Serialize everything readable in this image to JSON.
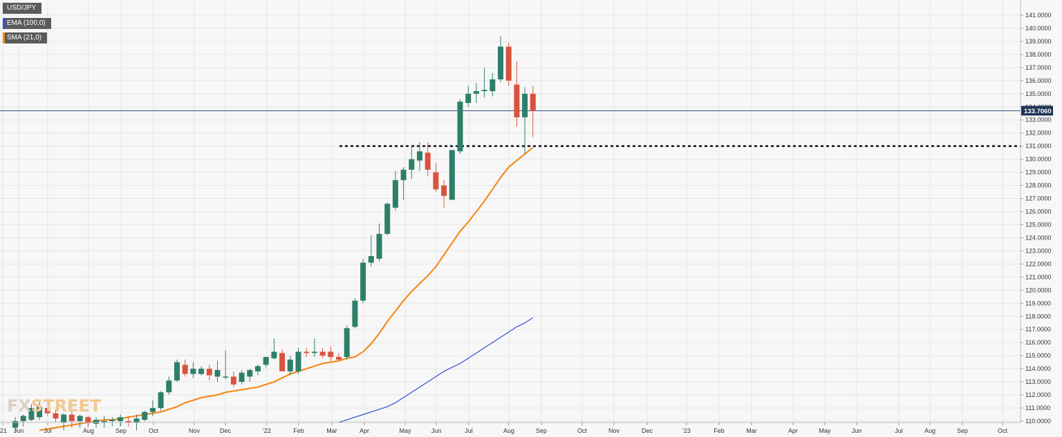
{
  "legend": {
    "symbol": "USD/JPY",
    "ema_label": "EMA (100,0)",
    "sma_label": "SMA (21,0)"
  },
  "watermark": {
    "part1": "FX",
    "part2": "STREET"
  },
  "colors": {
    "up": "#2e7f6a",
    "down": "#d9533f",
    "ema": "#2f4fd6",
    "sma": "#f28c1c",
    "price_line": "#2c4a7a",
    "price_label_bg": "#1e3556"
  },
  "chart_data": {
    "type": "candlestick",
    "title": "USD/JPY",
    "ylim": [
      110,
      141.5
    ],
    "yticks": [
      "110.0000",
      "111.0000",
      "112.0000",
      "113.0000",
      "114.0000",
      "115.0000",
      "116.0000",
      "117.0000",
      "118.0000",
      "119.0000",
      "120.0000",
      "121.0000",
      "122.0000",
      "123.0000",
      "124.0000",
      "125.0000",
      "126.0000",
      "127.0000",
      "128.0000",
      "129.0000",
      "130.0000",
      "131.0000",
      "132.0000",
      "133.0000",
      "134.0000",
      "135.0000",
      "136.0000",
      "137.0000",
      "138.0000",
      "139.0000",
      "140.0000",
      "141.0000"
    ],
    "xticks": [
      "'21",
      "Jun",
      "Jul",
      "Aug",
      "Sep",
      "Oct",
      "Nov",
      "Dec",
      "'22",
      "Feb",
      "Mar",
      "Apr",
      "May",
      "Jun",
      "Jul",
      "Aug",
      "Sep",
      "Oct",
      "Nov",
      "Dec",
      "'23",
      "Feb",
      "Mar",
      "Apr",
      "May",
      "Jun",
      "Jul",
      "Aug",
      "Sep",
      "Oct"
    ],
    "current_price": 133.706,
    "current_price_label": "133.7060",
    "support_level": 131.0,
    "candles": [
      {
        "o": 109.5,
        "h": 110.3,
        "l": 109.2,
        "c": 110.0
      },
      {
        "o": 110.0,
        "h": 110.5,
        "l": 109.6,
        "c": 110.4
      },
      {
        "o": 110.1,
        "h": 111.3,
        "l": 110.0,
        "c": 111.0
      },
      {
        "o": 110.3,
        "h": 111.5,
        "l": 110.1,
        "c": 111.1
      },
      {
        "o": 111.0,
        "h": 111.6,
        "l": 110.4,
        "c": 110.6
      },
      {
        "o": 110.6,
        "h": 110.9,
        "l": 109.9,
        "c": 110.2
      },
      {
        "o": 109.9,
        "h": 110.6,
        "l": 109.3,
        "c": 110.5
      },
      {
        "o": 110.5,
        "h": 110.9,
        "l": 109.5,
        "c": 110.0
      },
      {
        "o": 110.0,
        "h": 110.5,
        "l": 109.5,
        "c": 110.4
      },
      {
        "o": 110.3,
        "h": 110.4,
        "l": 109.5,
        "c": 109.9
      },
      {
        "o": 109.8,
        "h": 110.3,
        "l": 109.5,
        "c": 110.1
      },
      {
        "o": 109.9,
        "h": 110.4,
        "l": 109.5,
        "c": 110.0
      },
      {
        "o": 110.0,
        "h": 110.3,
        "l": 109.6,
        "c": 110.1
      },
      {
        "o": 110.0,
        "h": 110.5,
        "l": 109.6,
        "c": 110.3
      },
      {
        "o": 110.0,
        "h": 110.4,
        "l": 109.6,
        "c": 109.9
      },
      {
        "o": 109.9,
        "h": 110.5,
        "l": 109.3,
        "c": 110.2
      },
      {
        "o": 110.1,
        "h": 110.8,
        "l": 110.0,
        "c": 110.7
      },
      {
        "o": 110.7,
        "h": 111.6,
        "l": 110.4,
        "c": 111.0
      },
      {
        "o": 111.0,
        "h": 112.3,
        "l": 110.8,
        "c": 112.2
      },
      {
        "o": 112.2,
        "h": 113.4,
        "l": 112.0,
        "c": 113.1
      },
      {
        "o": 113.1,
        "h": 114.7,
        "l": 113.0,
        "c": 114.5
      },
      {
        "o": 114.3,
        "h": 114.7,
        "l": 113.4,
        "c": 113.6
      },
      {
        "o": 113.6,
        "h": 114.5,
        "l": 113.3,
        "c": 114.0
      },
      {
        "o": 113.6,
        "h": 114.2,
        "l": 113.5,
        "c": 114.0
      },
      {
        "o": 114.0,
        "h": 114.3,
        "l": 113.1,
        "c": 113.5
      },
      {
        "o": 113.4,
        "h": 114.6,
        "l": 113.0,
        "c": 113.9
      },
      {
        "o": 113.4,
        "h": 115.4,
        "l": 113.2,
        "c": 113.4
      },
      {
        "o": 113.4,
        "h": 113.8,
        "l": 112.6,
        "c": 112.8
      },
      {
        "o": 113.0,
        "h": 113.9,
        "l": 112.8,
        "c": 113.7
      },
      {
        "o": 113.4,
        "h": 114.0,
        "l": 113.0,
        "c": 113.9
      },
      {
        "o": 113.8,
        "h": 114.3,
        "l": 113.5,
        "c": 114.2
      },
      {
        "o": 114.3,
        "h": 114.9,
        "l": 114.1,
        "c": 114.9
      },
      {
        "o": 114.8,
        "h": 116.3,
        "l": 114.7,
        "c": 115.3
      },
      {
        "o": 115.2,
        "h": 115.5,
        "l": 113.8,
        "c": 113.8
      },
      {
        "o": 113.8,
        "h": 115.0,
        "l": 113.5,
        "c": 114.7
      },
      {
        "o": 113.8,
        "h": 115.6,
        "l": 113.6,
        "c": 115.3
      },
      {
        "o": 115.3,
        "h": 115.6,
        "l": 114.9,
        "c": 115.2
      },
      {
        "o": 115.2,
        "h": 116.3,
        "l": 114.9,
        "c": 115.3
      },
      {
        "o": 115.3,
        "h": 115.6,
        "l": 114.8,
        "c": 115.0
      },
      {
        "o": 115.3,
        "h": 115.7,
        "l": 114.6,
        "c": 114.9
      },
      {
        "o": 114.9,
        "h": 115.2,
        "l": 114.6,
        "c": 114.7
      },
      {
        "o": 114.9,
        "h": 117.3,
        "l": 114.7,
        "c": 117.1
      },
      {
        "o": 117.2,
        "h": 119.4,
        "l": 117.1,
        "c": 119.2
      },
      {
        "o": 119.2,
        "h": 122.4,
        "l": 119.0,
        "c": 122.1
      },
      {
        "o": 122.1,
        "h": 124.2,
        "l": 121.8,
        "c": 122.6
      },
      {
        "o": 122.4,
        "h": 125.1,
        "l": 122.2,
        "c": 124.3
      },
      {
        "o": 124.3,
        "h": 126.7,
        "l": 124.2,
        "c": 126.6
      },
      {
        "o": 126.3,
        "h": 129.1,
        "l": 126.1,
        "c": 128.4
      },
      {
        "o": 128.4,
        "h": 129.4,
        "l": 126.9,
        "c": 129.2
      },
      {
        "o": 129.2,
        "h": 131.0,
        "l": 128.5,
        "c": 130.0
      },
      {
        "o": 129.9,
        "h": 131.3,
        "l": 129.1,
        "c": 130.6
      },
      {
        "o": 130.5,
        "h": 131.3,
        "l": 128.7,
        "c": 129.2
      },
      {
        "o": 129.0,
        "h": 129.7,
        "l": 127.5,
        "c": 127.7
      },
      {
        "o": 128.0,
        "h": 128.4,
        "l": 126.3,
        "c": 127.2
      },
      {
        "o": 126.9,
        "h": 130.5,
        "l": 126.9,
        "c": 130.7
      },
      {
        "o": 130.6,
        "h": 134.6,
        "l": 130.4,
        "c": 134.4
      },
      {
        "o": 134.3,
        "h": 135.6,
        "l": 134.0,
        "c": 135.0
      },
      {
        "o": 135.0,
        "h": 135.8,
        "l": 134.3,
        "c": 135.2
      },
      {
        "o": 135.2,
        "h": 137.0,
        "l": 134.7,
        "c": 135.3
      },
      {
        "o": 135.2,
        "h": 136.6,
        "l": 134.8,
        "c": 136.1
      },
      {
        "o": 136.1,
        "h": 139.4,
        "l": 135.9,
        "c": 138.6
      },
      {
        "o": 138.6,
        "h": 138.9,
        "l": 135.6,
        "c": 136.0
      },
      {
        "o": 135.7,
        "h": 137.5,
        "l": 132.5,
        "c": 133.2
      },
      {
        "o": 133.2,
        "h": 135.5,
        "l": 130.4,
        "c": 135.0
      },
      {
        "o": 135.0,
        "h": 135.6,
        "l": 131.7,
        "c": 133.7
      }
    ],
    "sma": {
      "name": "SMA (21,0)",
      "values": [
        109.3,
        109.4,
        109.5,
        109.6,
        109.7,
        109.8,
        109.9,
        110.0,
        110.1,
        110.1,
        110.2,
        110.3,
        110.4,
        110.5,
        110.6,
        110.7,
        110.9,
        111.1,
        111.4,
        111.6,
        111.8,
        111.9,
        112.0,
        112.2,
        112.3,
        112.4,
        112.5,
        112.6,
        112.8,
        113.0,
        113.3,
        113.6,
        113.8,
        114.0,
        114.2,
        114.4,
        114.5,
        114.6,
        114.8,
        114.9,
        115.3,
        115.9,
        116.7,
        117.6,
        118.4,
        119.2,
        119.9,
        120.5,
        121.1,
        121.8,
        122.7,
        123.6,
        124.5,
        125.2,
        126.0,
        126.8,
        127.7,
        128.6,
        129.4,
        129.9,
        130.4,
        130.9
      ],
      "start_index": 3
    },
    "ema": {
      "name": "EMA (100,0)",
      "values": [
        109.9,
        110.1,
        110.3,
        110.5,
        110.7,
        110.9,
        111.1,
        111.4,
        111.8,
        112.2,
        112.6,
        113.0,
        113.4,
        113.8,
        114.1,
        114.4,
        114.8,
        115.2,
        115.6,
        116.0,
        116.4,
        116.8,
        117.2,
        117.5,
        117.9
      ],
      "start_index": 40
    }
  }
}
